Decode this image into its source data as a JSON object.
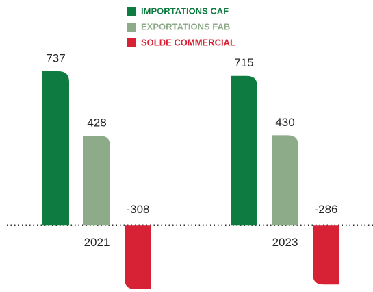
{
  "chart_data": {
    "type": "bar",
    "categories": [
      "2021",
      "2023"
    ],
    "series": [
      {
        "name": "IMPORTATIONS CAF",
        "color": "#0e7c41",
        "values": [
          737,
          715
        ]
      },
      {
        "name": "EXPORTATIONS FAB",
        "color": "#8dab88",
        "values": [
          428,
          430
        ]
      },
      {
        "name": "SOLDE COMMERCIAL",
        "color": "#d72134",
        "values": [
          -308,
          -286
        ]
      }
    ],
    "legend": "top"
  }
}
